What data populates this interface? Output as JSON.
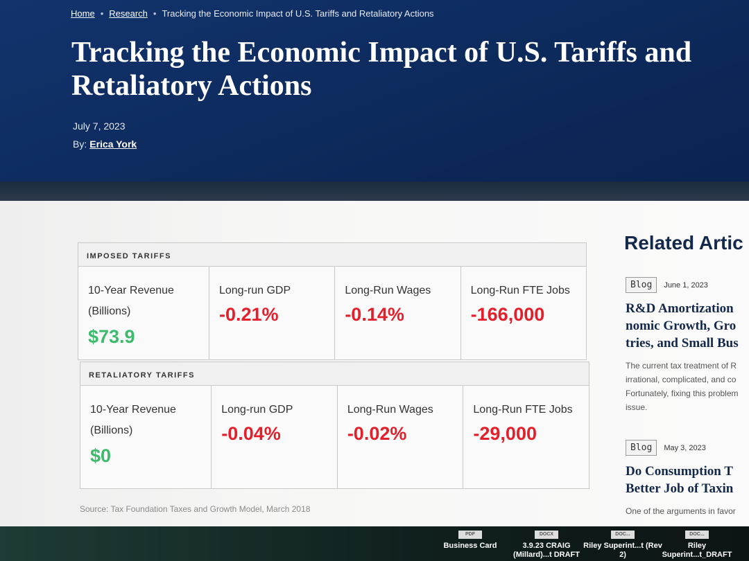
{
  "breadcrumb": {
    "items": [
      "Home",
      "Research",
      "Tracking the Economic Impact of U.S. Tariffs and Retaliatory Actions"
    ]
  },
  "article": {
    "title": "Tracking the Economic Impact of U.S. Tariffs and Retaliatory Actions",
    "date": "July 7, 2023",
    "byline_label": "By:",
    "author": "Erica York"
  },
  "tables": [
    {
      "heading": "IMPOSED TARIFFS",
      "cells": [
        {
          "label": "10-Year Revenue (Billions)",
          "value": "$73.9"
        },
        {
          "label": "Long-run GDP",
          "value": "-0.21%"
        },
        {
          "label": "Long-Run Wages",
          "value": "-0.14%"
        },
        {
          "label": "Long-Run FTE Jobs",
          "value": "-166,000"
        }
      ]
    },
    {
      "heading": "RETALIATORY TARIFFS",
      "cells": [
        {
          "label": "10-Year Revenue (Billions)",
          "value": "$0"
        },
        {
          "label": "Long-run GDP",
          "value": "-0.04%"
        },
        {
          "label": "Long-Run Wages",
          "value": "-0.02%"
        },
        {
          "label": "Long-Run FTE Jobs",
          "value": "-29,000"
        }
      ]
    }
  ],
  "source": "Source: Tax Foundation Taxes and Growth Model, March 2018",
  "related": {
    "heading": "Related Artic",
    "articles": [
      {
        "tag": "Blog",
        "date": "June 1, 2023",
        "title_lines": [
          "R&D Amortization",
          "nomic Growth, Gro",
          "tries, and Small Bus"
        ],
        "excerpt_lines": [
          "The current tax treatment of R",
          "irrational, complicated, and co",
          "Fortunately, fixing this problem",
          "issue."
        ]
      },
      {
        "tag": "Blog",
        "date": "May 3, 2023",
        "title_lines": [
          "Do Consumption T",
          "Better Job of Taxin"
        ],
        "excerpt_lines": [
          "One of the arguments in favor"
        ]
      }
    ]
  },
  "desktop_files": [
    {
      "badge": "PDF",
      "name": "Business Card"
    },
    {
      "badge": "DOCX",
      "name": "3.9.23 CRAIG (Millard)...t DRAFT"
    },
    {
      "badge": "DOC...",
      "name": "Riley Superint...t (Rev 2)"
    },
    {
      "badge": "DOC...",
      "name": "Riley Superint...t_DRAFT"
    }
  ]
}
